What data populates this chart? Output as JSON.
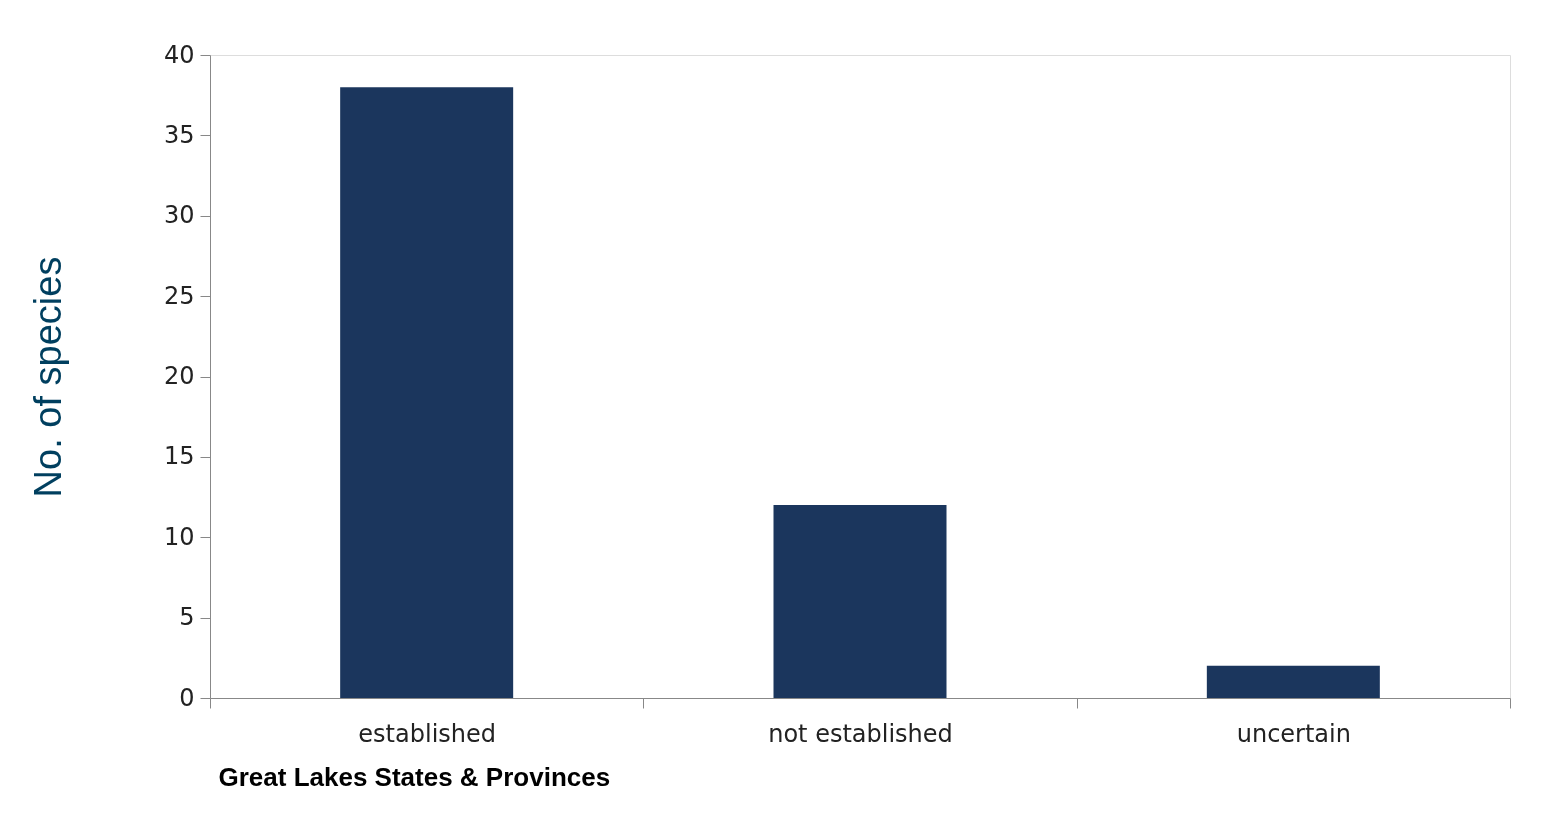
{
  "chart_data": {
    "type": "bar",
    "categories": [
      "established",
      "not established",
      "uncertain"
    ],
    "values": [
      38,
      12,
      2
    ],
    "color": "#1b365d",
    "ylabel": "No. of species",
    "xlabel": "Great Lakes States & Provinces",
    "ylim": [
      0,
      40
    ],
    "yticks": [
      0,
      5,
      10,
      15,
      20,
      25,
      30,
      35,
      40
    ],
    "grid": false
  }
}
